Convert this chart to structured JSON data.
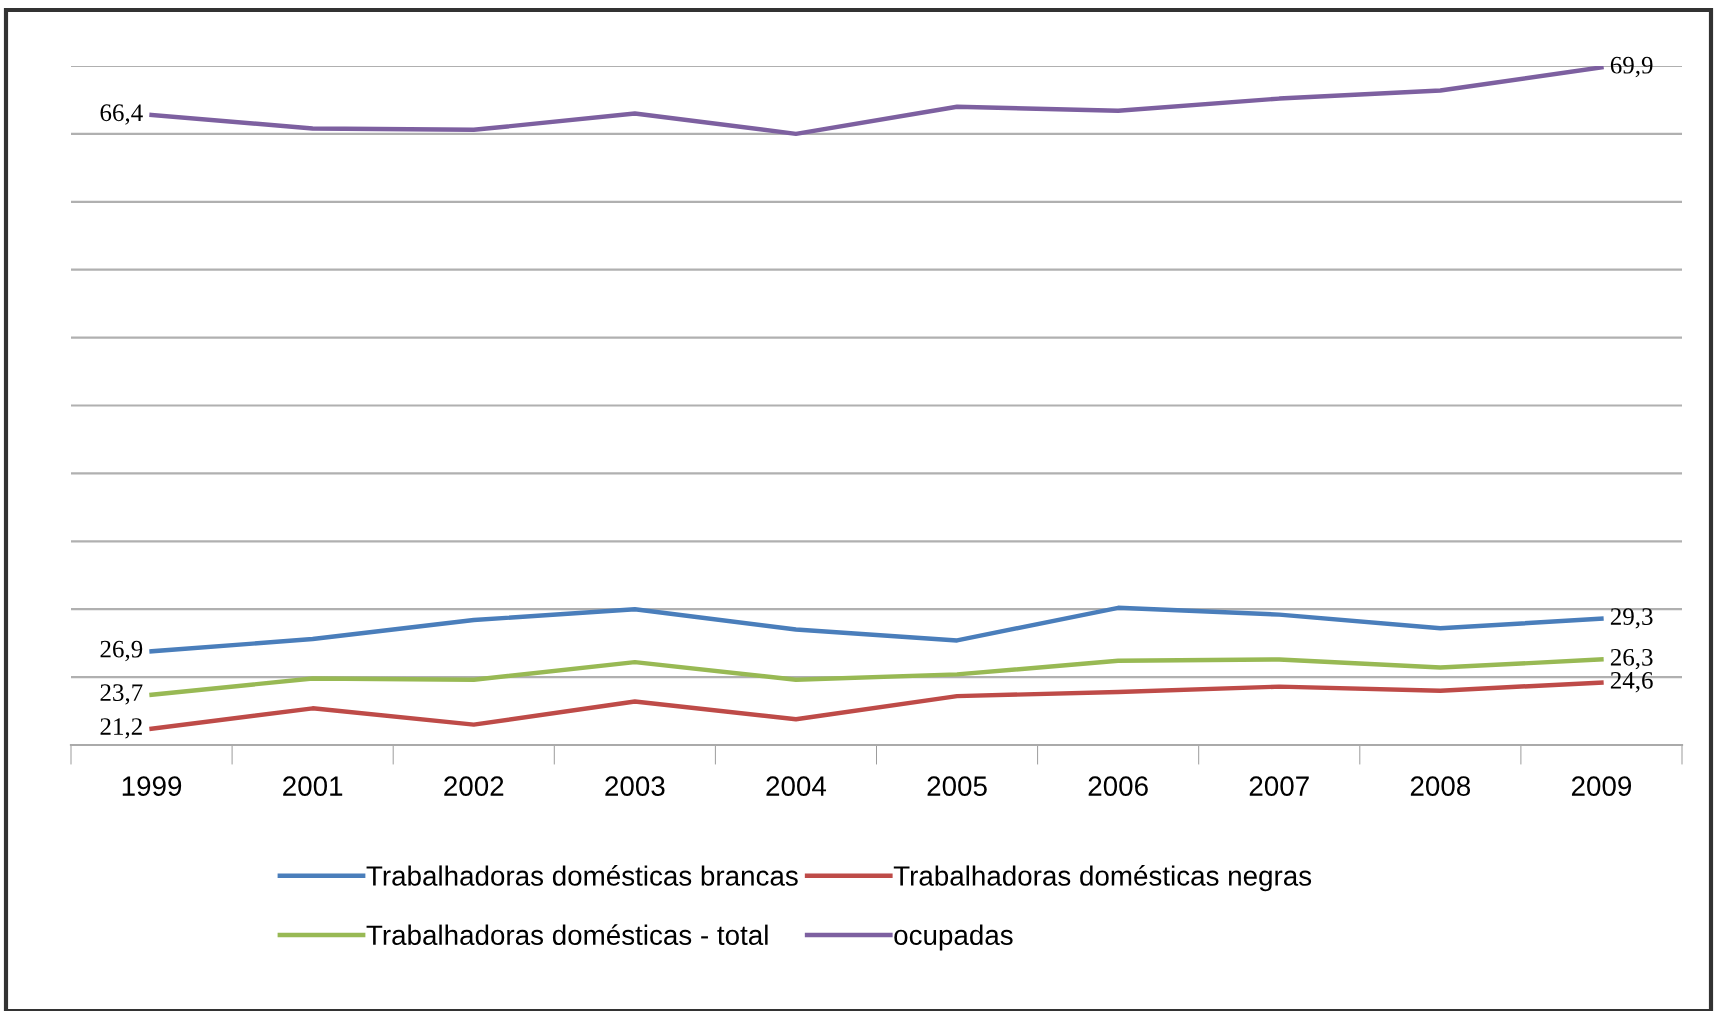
{
  "chart_data": {
    "type": "line",
    "categories": [
      "1999",
      "2001",
      "2002",
      "2003",
      "2004",
      "2005",
      "2006",
      "2007",
      "2008",
      "2009"
    ],
    "series": [
      {
        "name": "Trabalhadoras domésticas brancas",
        "color": "#4a7ebb",
        "values": [
          26.9,
          27.8,
          29.2,
          30.0,
          28.5,
          27.7,
          30.1,
          29.6,
          28.6,
          29.3
        ],
        "value_labels": [
          "26,9",
          null,
          null,
          null,
          null,
          null,
          null,
          null,
          null,
          "29,3"
        ]
      },
      {
        "name": "Trabalhadoras domésticas negras",
        "color": "#be4b48",
        "values": [
          21.2,
          22.7,
          21.5,
          23.2,
          21.9,
          23.6,
          23.9,
          24.3,
          24.0,
          24.6
        ],
        "value_labels": [
          "21,2",
          null,
          null,
          null,
          null,
          null,
          null,
          null,
          null,
          "24,6"
        ]
      },
      {
        "name": "Trabalhadoras domésticas - total",
        "color": "#98b954",
        "values": [
          23.7,
          24.9,
          24.8,
          26.1,
          24.8,
          25.2,
          26.2,
          26.3,
          25.7,
          26.3
        ],
        "value_labels": [
          "23,7",
          null,
          null,
          null,
          null,
          null,
          null,
          null,
          null,
          "26,3"
        ]
      },
      {
        "name": "ocupadas",
        "color": "#7d60a0",
        "values": [
          66.4,
          65.4,
          65.3,
          66.5,
          65.0,
          67.0,
          66.7,
          67.6,
          68.2,
          69.9
        ],
        "value_labels": [
          "66,4",
          null,
          null,
          null,
          null,
          null,
          null,
          null,
          null,
          "69,9"
        ]
      }
    ],
    "ylim": [
      20,
      70
    ],
    "yticks": [
      {
        "value": 20,
        "label": null
      },
      {
        "value": 25,
        "label": null
      },
      {
        "value": 30,
        "label": null
      },
      {
        "value": 35,
        "label": null
      },
      {
        "value": 40,
        "label": null
      },
      {
        "value": 45,
        "label": null
      },
      {
        "value": 50,
        "label": null
      },
      {
        "value": 55,
        "label": null
      },
      {
        "value": 60,
        "label": null
      },
      {
        "value": 65,
        "label": null
      },
      {
        "value": 70,
        "label": null
      }
    ],
    "tick_labels": "x",
    "grid": "y",
    "legend": "bottom",
    "marker": "none",
    "line_style": "solid"
  }
}
